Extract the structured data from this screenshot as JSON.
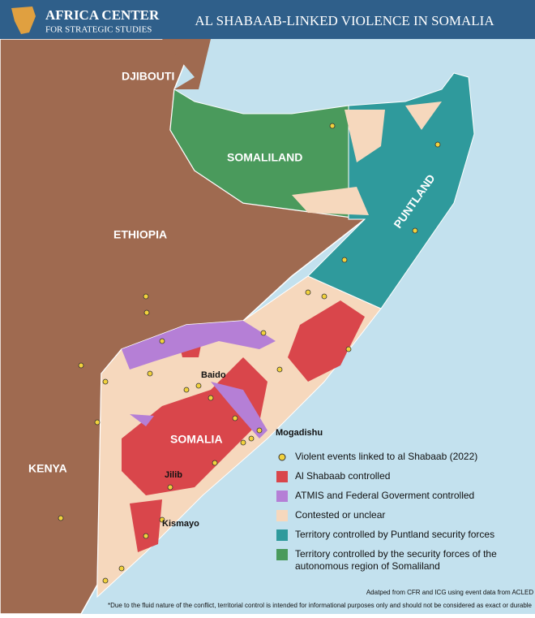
{
  "header": {
    "org_line1": "AFRICA CENTER",
    "org_line2": "FOR STRATEGIC STUDIES",
    "title": "AL SHABAAB-LINKED VIOLENCE IN SOMALIA"
  },
  "map_labels": {
    "countries": [
      "DJIBOUTI",
      "SOMALILAND",
      "ETHIOPIA",
      "PUNTLAND",
      "KENYA",
      "SOMALIA"
    ],
    "cities": [
      "Baido",
      "Mogadishu",
      "Jilib",
      "Kismayo"
    ]
  },
  "legend": [
    {
      "label": "Violent events linked to al Shabaab (2022)",
      "color": "#f2d23c"
    },
    {
      "label": "Al Shabaab controlled",
      "color": "#d9464b"
    },
    {
      "label": "ATMIS and Federal Goverment controlled",
      "color": "#b57fd6"
    },
    {
      "label": "Contested or unclear",
      "color": "#f6d8bd"
    },
    {
      "label": "Territory controlled by Puntland security forces",
      "color": "#2f9a9c"
    },
    {
      "label": "Territory controlled by the security forces of the autonomous region of Somaliland",
      "color": "#4a9a5c"
    }
  ],
  "source": "Adatped from CFR and ICG using event data from ACLED",
  "disclaimer": "*Due to the fluid nature of the conflict, territorial control is intended for informational purposes only and should not be considered as exact or durable"
}
